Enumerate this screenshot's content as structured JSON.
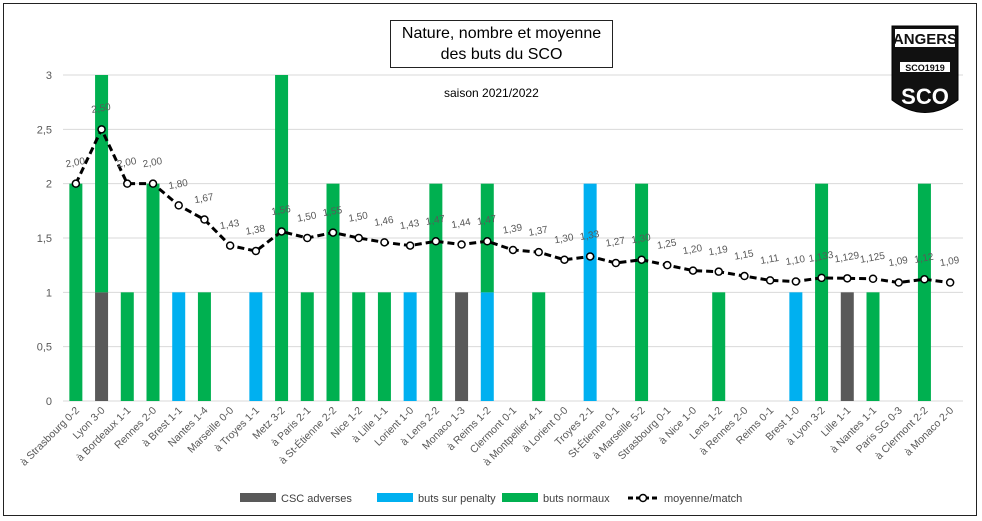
{
  "chart_data": {
    "type": "bar",
    "stacked": true,
    "title_line1": "Nature, nombre et moyenne",
    "title_line2": "des buts du SCO",
    "subtitle": "saison 2021/2022",
    "ylim": [
      0,
      3
    ],
    "yticks": [
      "0",
      "0,5",
      "1",
      "1,5",
      "2",
      "2,5",
      "3"
    ],
    "grid": true,
    "legend_position": "bottom",
    "categories": [
      "à Strasbourg 0-2",
      "Lyon 3-0",
      "à Bordeaux 1-1",
      "Rennes 2-0",
      "à Brest 1-1",
      "Nantes 1-4",
      "Marseille 0-0",
      "à Troyes 1-1",
      "Metz 3-2",
      "à Paris 2-1",
      "à St-Étienne 2-2",
      "Nice 1-2",
      "à Lille 1-1",
      "Lorient 1-0",
      "à Lens 2-2",
      "Monaco 1-3",
      "à Reims 1-2",
      "Clermont 0-1",
      "à Montpellier 4-1",
      "à Lorient 0-0",
      "Troyes 2-1",
      "St-Étienne 0-1",
      "à Marseille 5-2",
      "Strasbourg 0-1",
      "à Nice 1-0",
      "Lens 1-2",
      "à Rennes 2-0",
      "Reims 0-1",
      "Brest 1-0",
      "à Lyon 3-2",
      "Lille 1-1",
      "à Nantes 1-1",
      "Paris SG 0-3",
      "à Clermont 2-2",
      "à Monaco 2-0"
    ],
    "series": [
      {
        "name": "CSC adverses",
        "color": "#595959",
        "values": [
          0,
          1,
          0,
          0,
          0,
          0,
          0,
          0,
          0,
          0,
          0,
          0,
          0,
          0,
          0,
          1,
          0,
          0,
          0,
          0,
          0,
          0,
          0,
          0,
          0,
          0,
          0,
          0,
          0,
          0,
          1,
          0,
          0,
          0,
          0
        ]
      },
      {
        "name": "buts sur penalty",
        "color": "#00b0f0",
        "values": [
          0,
          0,
          0,
          0,
          1,
          0,
          0,
          1,
          0,
          0,
          0,
          0,
          0,
          1,
          0,
          0,
          1,
          0,
          0,
          0,
          2,
          0,
          0,
          0,
          0,
          0,
          0,
          0,
          1,
          0,
          0,
          0,
          0,
          0,
          0
        ]
      },
      {
        "name": "buts normaux",
        "color": "#00b050",
        "values": [
          2,
          2,
          1,
          2,
          0,
          1,
          0,
          0,
          3,
          1,
          2,
          1,
          1,
          0,
          2,
          0,
          1,
          0,
          1,
          0,
          0,
          0,
          2,
          0,
          0,
          1,
          0,
          0,
          0,
          2,
          0,
          1,
          0,
          2,
          0
        ]
      }
    ],
    "line": {
      "name": "moyenne/match",
      "color": "#000000",
      "values": [
        2.0,
        2.5,
        2.0,
        2.0,
        1.8,
        1.67,
        1.43,
        1.38,
        1.56,
        1.5,
        1.55,
        1.5,
        1.46,
        1.43,
        1.47,
        1.44,
        1.47,
        1.39,
        1.37,
        1.3,
        1.33,
        1.27,
        1.3,
        1.25,
        1.2,
        1.19,
        1.15,
        1.11,
        1.1,
        1.133,
        1.129,
        1.125,
        1.09,
        1.12,
        1.09
      ],
      "labels": [
        "2,00",
        "2,50",
        "2,00",
        "2,00",
        "1,80",
        "1,67",
        "1,43",
        "1,38",
        "1,56",
        "1,50",
        "1,55",
        "1,50",
        "1,46",
        "1,43",
        "1,47",
        "1,44",
        "1,47",
        "1,39",
        "1,37",
        "1,30",
        "1,33",
        "1,27",
        "1,30",
        "1,25",
        "1,20",
        "1,19",
        "1,15",
        "1,11",
        "1,10",
        "1,133",
        "1,129",
        "1,125",
        "1,09",
        "1,12",
        "1,09"
      ]
    }
  },
  "logo": {
    "top": "ANGERS",
    "middle": "SCO1919",
    "bottom": "SCO"
  }
}
